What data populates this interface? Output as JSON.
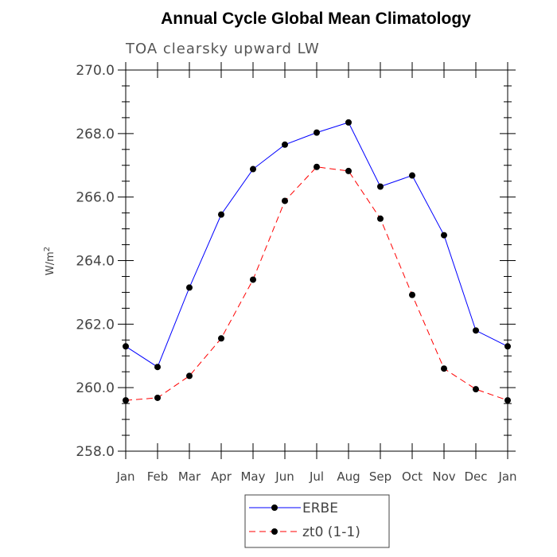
{
  "chart_data": {
    "type": "line",
    "title": "Annual Cycle Global Mean Climatology",
    "subtitle": "TOA clearsky upward LW",
    "ylabel": "W/m",
    "ylabel_sup": "2",
    "xlabel": "",
    "categories": [
      "Jan",
      "Feb",
      "Mar",
      "Apr",
      "May",
      "Jun",
      "Jul",
      "Aug",
      "Sep",
      "Oct",
      "Nov",
      "Dec",
      "Jan"
    ],
    "ylim": [
      258.0,
      270.0
    ],
    "yticks": [
      "258.0",
      "260.0",
      "262.0",
      "264.0",
      "266.0",
      "268.0",
      "270.0"
    ],
    "ytick_values": [
      258,
      260,
      262,
      264,
      266,
      268,
      270
    ],
    "grid": false,
    "legend_position": "bottom",
    "series": [
      {
        "name": "ERBE",
        "color": "#0000ff",
        "dash": "solid",
        "values": [
          261.3,
          260.65,
          263.15,
          265.45,
          266.88,
          267.65,
          268.03,
          268.35,
          266.33,
          266.68,
          264.8,
          261.8,
          261.3
        ]
      },
      {
        "name": "zt0 (1-1)",
        "color": "#ff0000",
        "dash": "dashed",
        "values": [
          259.6,
          259.68,
          260.37,
          261.55,
          263.4,
          265.88,
          266.95,
          266.82,
          265.32,
          262.92,
          260.6,
          259.95,
          259.6
        ]
      }
    ]
  }
}
